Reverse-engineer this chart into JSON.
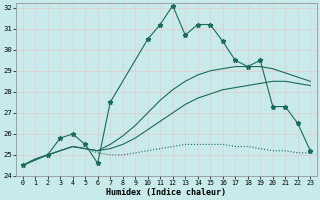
{
  "bg_color": "#c8eaea",
  "grid_color": "#e0d0d0",
  "line_color": "#1a6b5a",
  "xlim": [
    -0.5,
    23.5
  ],
  "ylim": [
    24,
    32.2
  ],
  "yticks": [
    24,
    25,
    26,
    27,
    28,
    29,
    30,
    31,
    32
  ],
  "xticks": [
    0,
    1,
    2,
    3,
    4,
    5,
    6,
    7,
    8,
    9,
    10,
    11,
    12,
    13,
    14,
    15,
    16,
    17,
    18,
    19,
    20,
    21,
    22,
    23
  ],
  "xlabel": "Humidex (Indice chaleur)",
  "lines": [
    {
      "x": [
        0,
        1,
        2,
        3,
        4,
        5,
        6,
        7,
        8,
        9,
        10,
        11,
        12,
        13,
        14,
        15,
        16,
        17,
        18,
        19,
        20,
        21,
        22,
        23
      ],
      "y": [
        24.5,
        24.8,
        25.0,
        25.2,
        25.4,
        25.3,
        25.1,
        25.0,
        25.0,
        25.1,
        25.2,
        25.3,
        25.4,
        25.5,
        25.5,
        25.5,
        25.5,
        25.4,
        25.4,
        25.3,
        25.2,
        25.2,
        25.1,
        25.1
      ],
      "marker": false,
      "dotted": true
    },
    {
      "x": [
        0,
        1,
        2,
        3,
        4,
        5,
        6,
        7,
        8,
        9,
        10,
        11,
        12,
        13,
        14,
        15,
        16,
        17,
        18,
        19,
        20,
        21,
        22,
        23
      ],
      "y": [
        24.5,
        24.8,
        25.0,
        25.2,
        25.4,
        25.3,
        25.2,
        25.3,
        25.5,
        25.8,
        26.2,
        26.6,
        27.0,
        27.4,
        27.7,
        27.9,
        28.1,
        28.2,
        28.3,
        28.4,
        28.5,
        28.5,
        28.4,
        28.3
      ],
      "marker": false,
      "dotted": false
    },
    {
      "x": [
        0,
        1,
        2,
        3,
        4,
        5,
        6,
        7,
        8,
        9,
        10,
        11,
        12,
        13,
        14,
        15,
        16,
        17,
        18,
        19,
        20,
        21,
        22,
        23
      ],
      "y": [
        24.5,
        24.8,
        25.0,
        25.2,
        25.4,
        25.3,
        25.2,
        25.5,
        25.9,
        26.4,
        27.0,
        27.6,
        28.1,
        28.5,
        28.8,
        29.0,
        29.1,
        29.2,
        29.2,
        29.2,
        29.1,
        28.9,
        28.7,
        28.5
      ],
      "marker": false,
      "dotted": false
    },
    {
      "x": [
        0,
        2,
        3,
        4,
        5,
        6,
        7,
        10,
        11,
        12,
        13,
        14,
        15,
        16,
        17,
        18,
        19,
        20,
        21,
        22,
        23
      ],
      "y": [
        24.5,
        25.0,
        25.8,
        26.0,
        25.5,
        24.6,
        27.5,
        30.5,
        31.2,
        32.1,
        30.7,
        31.2,
        31.2,
        30.4,
        29.5,
        29.2,
        29.5,
        27.3,
        27.3,
        26.5,
        25.2
      ],
      "marker": true,
      "dotted": false
    }
  ]
}
